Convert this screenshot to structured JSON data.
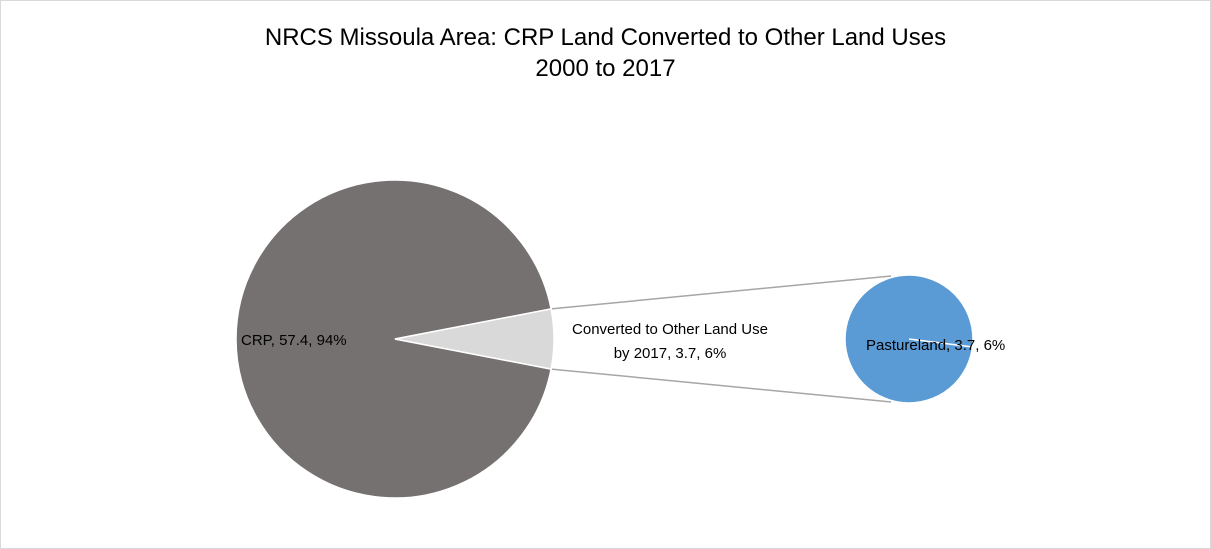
{
  "chart_data": {
    "type": "pie",
    "subtype": "pie-of-pie",
    "title": "NRCS Missoula Area: CRP Land Converted to Other Land Uses",
    "subtitle": "2000 to 2017",
    "primary_slices": [
      {
        "label": "CRP",
        "value": 57.4,
        "percent": "94%",
        "color": "#767171",
        "data_label": "CRP, 57.4, 94%"
      },
      {
        "label": "Converted to Other Land Use by 2017",
        "value": 3.7,
        "percent": "6%",
        "color": "#d9d9d9",
        "data_label_line1": "Converted to Other Land Use",
        "data_label_line2": "by 2017, 3.7, 6%"
      }
    ],
    "secondary_slices": [
      {
        "label": "Pastureland",
        "value": 3.7,
        "percent": "6%",
        "color": "#5b9bd5",
        "data_label": "Pastureland, 3.7, 6%"
      }
    ],
    "connector_color": "#a6a6a6"
  }
}
